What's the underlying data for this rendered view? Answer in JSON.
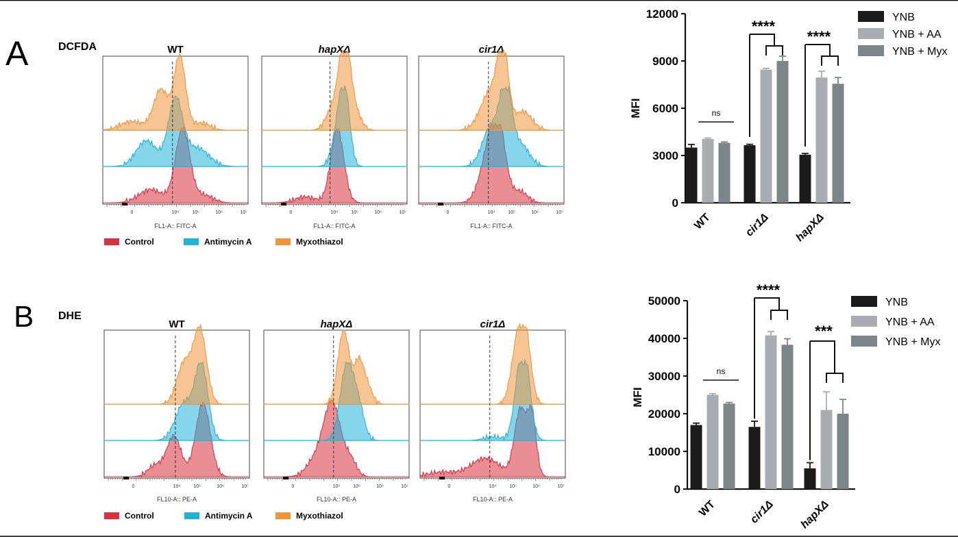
{
  "panels": [
    {
      "letter": "A",
      "stain": "DCFDA",
      "flow": {
        "x_axis_label": "FL1-A:: FITC-A",
        "tick_labels": [
          "0",
          "10⁴",
          "10⁵",
          "10⁶",
          "10⁷"
        ],
        "strains": [
          "WT",
          "hapXΔ",
          "cir1Δ"
        ],
        "legend": [
          {
            "label": "Control",
            "color": "#d8323f"
          },
          {
            "label": "Antimycin A",
            "color": "#21b2da"
          },
          {
            "label": "Myxothiazol",
            "color": "#f0953a"
          }
        ]
      },
      "bar": {
        "ylabel": "MFI",
        "groups": [
          "WT",
          "cir1Δ",
          "hapXΔ"
        ],
        "series": [
          {
            "name": "YNB",
            "color": "#1b1b1b",
            "values": [
              3500,
              3650,
              3050
            ],
            "errors": [
              200,
              60,
              80
            ]
          },
          {
            "name": "YNB + AA",
            "color": "#a9adb1",
            "values": [
              4050,
              8450,
              7950
            ],
            "errors": [
              60,
              80,
              400
            ]
          },
          {
            "name": "YNB + Myx",
            "color": "#7c8689",
            "values": [
              3800,
              9000,
              7550
            ],
            "errors": [
              60,
              300,
              400
            ]
          }
        ],
        "significance": [
          "ns",
          "****",
          "****"
        ]
      }
    },
    {
      "letter": "B",
      "stain": "DHE",
      "flow": {
        "x_axis_label": "FL10-A:: PE-A",
        "tick_labels": [
          "0",
          "10⁴",
          "10⁵",
          "10⁶",
          "10⁷"
        ],
        "strains": [
          "WT",
          "hapXΔ",
          "cir1Δ"
        ],
        "legend": [
          {
            "label": "Control",
            "color": "#d8323f"
          },
          {
            "label": "Antimycin A",
            "color": "#21b2da"
          },
          {
            "label": "Myxothiazol",
            "color": "#f0953a"
          }
        ]
      },
      "bar": {
        "ylabel": "MFI",
        "groups": [
          "WT",
          "cir1Δ",
          "hapXΔ"
        ],
        "series": [
          {
            "name": "YNB",
            "color": "#1b1b1b",
            "values": [
              17000,
              16500,
              5500
            ],
            "errors": [
              500,
              1500,
              1500
            ]
          },
          {
            "name": "YNB + AA",
            "color": "#a9adb1",
            "values": [
              25000,
              40800,
              21000
            ],
            "errors": [
              300,
              1000,
              4800
            ]
          },
          {
            "name": "YNB + Myx",
            "color": "#7c8689",
            "values": [
              22700,
              38300,
              20000
            ],
            "errors": [
              300,
              1600,
              3800
            ]
          }
        ],
        "significance": [
          "ns",
          "****",
          "***"
        ]
      }
    }
  ],
  "chart_data": [
    {
      "type": "bar",
      "title": "DCFDA",
      "ylabel": "MFI",
      "xlabel": "",
      "ylim": [
        0,
        12000
      ],
      "yticks": [
        "0",
        "3000",
        "6000",
        "9000",
        "12000"
      ],
      "categories": [
        "WT",
        "cir1Δ",
        "hapXΔ"
      ],
      "series": [
        {
          "name": "YNB",
          "values": [
            3500,
            3650,
            3050
          ]
        },
        {
          "name": "YNB + AA",
          "values": [
            4050,
            8450,
            7950
          ]
        },
        {
          "name": "YNB + Myx",
          "values": [
            3800,
            9000,
            7550
          ]
        }
      ],
      "annotations": [
        "ns",
        "****",
        "****"
      ]
    },
    {
      "type": "bar",
      "title": "DHE",
      "ylabel": "MFI",
      "xlabel": "",
      "ylim": [
        0,
        50000
      ],
      "yticks": [
        "0",
        "10000",
        "20000",
        "30000",
        "40000",
        "50000"
      ],
      "categories": [
        "WT",
        "cir1Δ",
        "hapXΔ"
      ],
      "series": [
        {
          "name": "YNB",
          "values": [
            17000,
            16500,
            5500
          ]
        },
        {
          "name": "YNB + AA",
          "values": [
            25000,
            40800,
            21000
          ]
        },
        {
          "name": "YNB + Myx",
          "values": [
            22700,
            38300,
            20000
          ]
        }
      ],
      "annotations": [
        "ns",
        "****",
        "***"
      ]
    }
  ]
}
